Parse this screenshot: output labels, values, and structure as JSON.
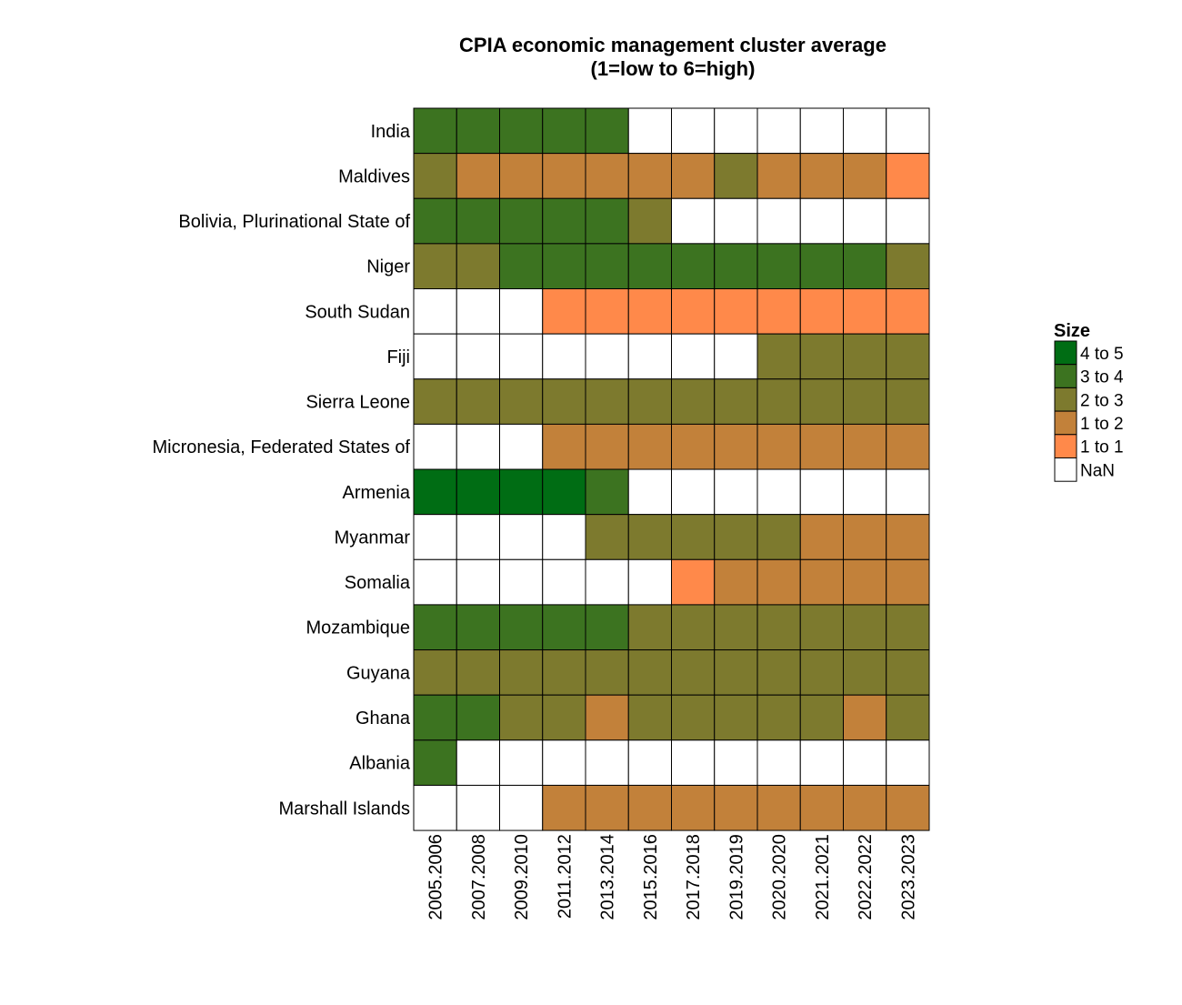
{
  "chart_data": {
    "type": "heatmap",
    "title": "CPIA economic management cluster average",
    "subtitle": "(1=low to 6=high)",
    "x_categories": [
      "2005.2006",
      "2007.2008",
      "2009.2010",
      "2011.2012",
      "2013.2014",
      "2015.2016",
      "2017.2018",
      "2019.2019",
      "2020.2020",
      "2021.2021",
      "2022.2022",
      "2023.2023"
    ],
    "y_categories": [
      "India",
      "Maldives",
      "Bolivia, Plurinational State of",
      "Niger",
      "South Sudan",
      "Fiji",
      "Sierra Leone",
      "Micronesia, Federated States of",
      "Armenia",
      "Myanmar",
      "Somalia",
      "Mozambique",
      "Guyana",
      "Ghana",
      "Albania",
      "Marshall Islands"
    ],
    "bins": [
      "4 to 5",
      "3 to 4",
      "2 to 3",
      "1 to 2",
      "1 to 1",
      "NaN"
    ],
    "cells": [
      [
        "3 to 4",
        "3 to 4",
        "3 to 4",
        "3 to 4",
        "3 to 4",
        "NaN",
        "NaN",
        "NaN",
        "NaN",
        "NaN",
        "NaN",
        "NaN"
      ],
      [
        "2 to 3",
        "1 to 2",
        "1 to 2",
        "1 to 2",
        "1 to 2",
        "1 to 2",
        "1 to 2",
        "2 to 3",
        "1 to 2",
        "1 to 2",
        "1 to 2",
        "1 to 1"
      ],
      [
        "3 to 4",
        "3 to 4",
        "3 to 4",
        "3 to 4",
        "3 to 4",
        "2 to 3",
        "NaN",
        "NaN",
        "NaN",
        "NaN",
        "NaN",
        "NaN"
      ],
      [
        "2 to 3",
        "2 to 3",
        "3 to 4",
        "3 to 4",
        "3 to 4",
        "3 to 4",
        "3 to 4",
        "3 to 4",
        "3 to 4",
        "3 to 4",
        "3 to 4",
        "2 to 3"
      ],
      [
        "NaN",
        "NaN",
        "NaN",
        "1 to 1",
        "1 to 1",
        "1 to 1",
        "1 to 1",
        "1 to 1",
        "1 to 1",
        "1 to 1",
        "1 to 1",
        "1 to 1"
      ],
      [
        "NaN",
        "NaN",
        "NaN",
        "NaN",
        "NaN",
        "NaN",
        "NaN",
        "NaN",
        "2 to 3",
        "2 to 3",
        "2 to 3",
        "2 to 3"
      ],
      [
        "2 to 3",
        "2 to 3",
        "2 to 3",
        "2 to 3",
        "2 to 3",
        "2 to 3",
        "2 to 3",
        "2 to 3",
        "2 to 3",
        "2 to 3",
        "2 to 3",
        "2 to 3"
      ],
      [
        "NaN",
        "NaN",
        "NaN",
        "1 to 2",
        "1 to 2",
        "1 to 2",
        "1 to 2",
        "1 to 2",
        "1 to 2",
        "1 to 2",
        "1 to 2",
        "1 to 2"
      ],
      [
        "4 to 5",
        "4 to 5",
        "4 to 5",
        "4 to 5",
        "3 to 4",
        "NaN",
        "NaN",
        "NaN",
        "NaN",
        "NaN",
        "NaN",
        "NaN"
      ],
      [
        "NaN",
        "NaN",
        "NaN",
        "NaN",
        "2 to 3",
        "2 to 3",
        "2 to 3",
        "2 to 3",
        "2 to 3",
        "1 to 2",
        "1 to 2",
        "1 to 2"
      ],
      [
        "NaN",
        "NaN",
        "NaN",
        "NaN",
        "NaN",
        "NaN",
        "1 to 1",
        "1 to 2",
        "1 to 2",
        "1 to 2",
        "1 to 2",
        "1 to 2"
      ],
      [
        "3 to 4",
        "3 to 4",
        "3 to 4",
        "3 to 4",
        "3 to 4",
        "2 to 3",
        "2 to 3",
        "2 to 3",
        "2 to 3",
        "2 to 3",
        "2 to 3",
        "2 to 3"
      ],
      [
        "2 to 3",
        "2 to 3",
        "2 to 3",
        "2 to 3",
        "2 to 3",
        "2 to 3",
        "2 to 3",
        "2 to 3",
        "2 to 3",
        "2 to 3",
        "2 to 3",
        "2 to 3"
      ],
      [
        "3 to 4",
        "3 to 4",
        "2 to 3",
        "2 to 3",
        "1 to 2",
        "2 to 3",
        "2 to 3",
        "2 to 3",
        "2 to 3",
        "2 to 3",
        "1 to 2",
        "2 to 3"
      ],
      [
        "3 to 4",
        "NaN",
        "NaN",
        "NaN",
        "NaN",
        "NaN",
        "NaN",
        "NaN",
        "NaN",
        "NaN",
        "NaN",
        "NaN"
      ],
      [
        "NaN",
        "NaN",
        "NaN",
        "1 to 2",
        "1 to 2",
        "1 to 2",
        "1 to 2",
        "1 to 2",
        "1 to 2",
        "1 to 2",
        "1 to 2",
        "1 to 2"
      ]
    ],
    "legend": {
      "title": "Size",
      "entries": [
        {
          "label": "4 to 5",
          "color": "#006d14"
        },
        {
          "label": "3 to 4",
          "color": "#3c7320"
        },
        {
          "label": "2 to 3",
          "color": "#7d7a2e"
        },
        {
          "label": "1 to 2",
          "color": "#c2813a"
        },
        {
          "label": "1 to 1",
          "color": "#ff894a"
        },
        {
          "label": "NaN",
          "color": "#ffffff"
        }
      ],
      "placement": "right"
    },
    "grid": false
  }
}
